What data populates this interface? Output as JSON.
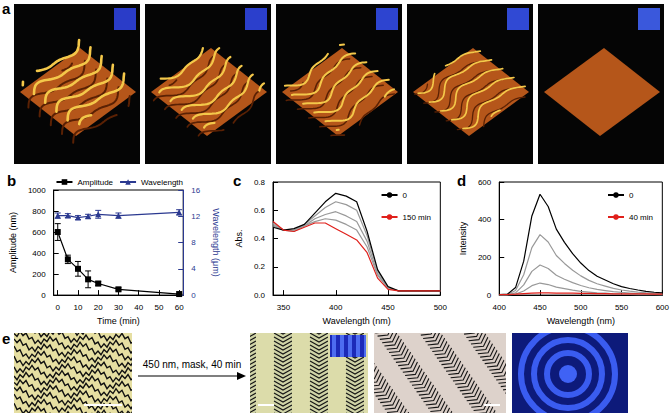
{
  "panels": {
    "a": {
      "label": "a"
    },
    "e": {
      "label": "e",
      "arrow_text": "450 nm, mask, 40 min"
    }
  },
  "chart_data": [
    {
      "type": "line",
      "title": "b",
      "x_label": "Time (min)",
      "y_label": "Amplitude (nm)",
      "y2_label": "Wavelength (μm)",
      "x": [
        0,
        5,
        10,
        15,
        20,
        30,
        60
      ],
      "series": [
        {
          "name": "Amplitude",
          "color": "#000000",
          "marker": "square",
          "values": [
            600,
            340,
            250,
            150,
            110,
            55,
            10
          ],
          "errors": [
            80,
            40,
            70,
            80,
            20,
            15,
            5
          ]
        },
        {
          "name": "Wavelength",
          "color": "#2b3990",
          "marker": "triangle",
          "axis": "y2",
          "values": [
            12.1,
            12.1,
            11.8,
            12.0,
            12.3,
            12.1,
            12.6
          ],
          "errors": [
            0.4,
            0.3,
            0.3,
            0.3,
            0.6,
            0.4,
            0.4
          ]
        }
      ],
      "xlim": [
        -2,
        62
      ],
      "xticks": [
        0,
        10,
        20,
        30,
        40,
        50,
        60
      ],
      "ylim": [
        0,
        1000
      ],
      "yticks": [
        0,
        200,
        400,
        600,
        800,
        1000
      ],
      "y2lim": [
        0,
        16
      ],
      "y2ticks": [
        0,
        4,
        8,
        12,
        16
      ],
      "legend": "upper right",
      "grid": false
    },
    {
      "type": "line",
      "title": "c",
      "x_label": "Wavelength (nm)",
      "y_label": "Abs.",
      "x": [
        340,
        350,
        360,
        370,
        380,
        390,
        400,
        410,
        420,
        430,
        440,
        450,
        460,
        470,
        480,
        490,
        500
      ],
      "series": [
        {
          "color": "#999999",
          "values": [
            0.49,
            0.46,
            0.46,
            0.5,
            0.56,
            0.62,
            0.66,
            0.64,
            0.6,
            0.42,
            0.17,
            0.05,
            0.03,
            0.03,
            0.03,
            0.03,
            0.03
          ]
        },
        {
          "color": "#999999",
          "values": [
            0.5,
            0.46,
            0.46,
            0.49,
            0.54,
            0.57,
            0.59,
            0.56,
            0.52,
            0.38,
            0.15,
            0.05,
            0.03,
            0.03,
            0.03,
            0.03,
            0.03
          ]
        },
        {
          "color": "#999999",
          "values": [
            0.51,
            0.46,
            0.45,
            0.49,
            0.52,
            0.54,
            0.53,
            0.5,
            0.46,
            0.34,
            0.14,
            0.05,
            0.03,
            0.03,
            0.03,
            0.03,
            0.03
          ]
        },
        {
          "name": "0",
          "color": "#000000",
          "values": [
            0.48,
            0.46,
            0.47,
            0.5,
            0.58,
            0.66,
            0.72,
            0.7,
            0.66,
            0.45,
            0.18,
            0.06,
            0.03,
            0.03,
            0.03,
            0.03,
            0.03
          ]
        },
        {
          "name": "150 min",
          "color": "#e0201b",
          "values": [
            0.52,
            0.46,
            0.45,
            0.48,
            0.51,
            0.51,
            0.47,
            0.43,
            0.39,
            0.3,
            0.12,
            0.04,
            0.03,
            0.03,
            0.03,
            0.03,
            0.03
          ]
        }
      ],
      "xlim": [
        340,
        500
      ],
      "xticks": [
        350,
        400,
        450,
        500
      ],
      "ylim": [
        0,
        0.8
      ],
      "yticks": [
        {
          "value": 0,
          "label": "0.0"
        },
        0.2,
        0.4,
        0.6,
        0.8
      ],
      "legend": "upper right",
      "grid": false
    },
    {
      "type": "line",
      "title": "d",
      "x_label": "Wavelength (nm)",
      "y_label": "Intensity",
      "x": [
        400,
        410,
        420,
        430,
        440,
        450,
        460,
        470,
        480,
        490,
        500,
        510,
        520,
        530,
        540,
        550,
        560,
        570,
        580,
        590,
        600
      ],
      "series": [
        {
          "color": "#999999",
          "values": [
            1,
            3,
            24,
            108,
            252,
            321,
            282,
            210,
            168,
            132,
            102,
            78,
            60,
            48,
            36,
            27,
            21,
            16,
            12,
            9,
            7
          ]
        },
        {
          "color": "#999999",
          "values": [
            1,
            2,
            12,
            54,
            126,
            160,
            141,
            105,
            84,
            66,
            51,
            39,
            30,
            24,
            18,
            14,
            11,
            8,
            6,
            5,
            4
          ]
        },
        {
          "color": "#999999",
          "values": [
            1,
            1,
            5,
            22,
            50,
            64,
            56,
            42,
            34,
            26,
            20,
            16,
            12,
            10,
            7,
            5,
            4,
            3,
            2,
            2,
            1
          ]
        },
        {
          "name": "0",
          "color": "#000000",
          "values": [
            2,
            5,
            40,
            180,
            420,
            535,
            470,
            350,
            280,
            220,
            170,
            130,
            100,
            80,
            60,
            45,
            35,
            27,
            20,
            15,
            12
          ]
        },
        {
          "name": "40 min",
          "color": "#e0201b",
          "values": [
            2,
            3,
            5,
            8,
            10,
            12,
            12,
            11,
            10,
            10,
            9,
            9,
            8,
            8,
            7,
            7,
            6,
            6,
            6,
            5,
            5
          ]
        }
      ],
      "xlim": [
        400,
        600
      ],
      "xticks": [
        400,
        450,
        500,
        550,
        600
      ],
      "ylim": [
        0,
        600
      ],
      "yticks": [
        0,
        200,
        400,
        600
      ],
      "legend": "upper right",
      "grid": false
    }
  ]
}
